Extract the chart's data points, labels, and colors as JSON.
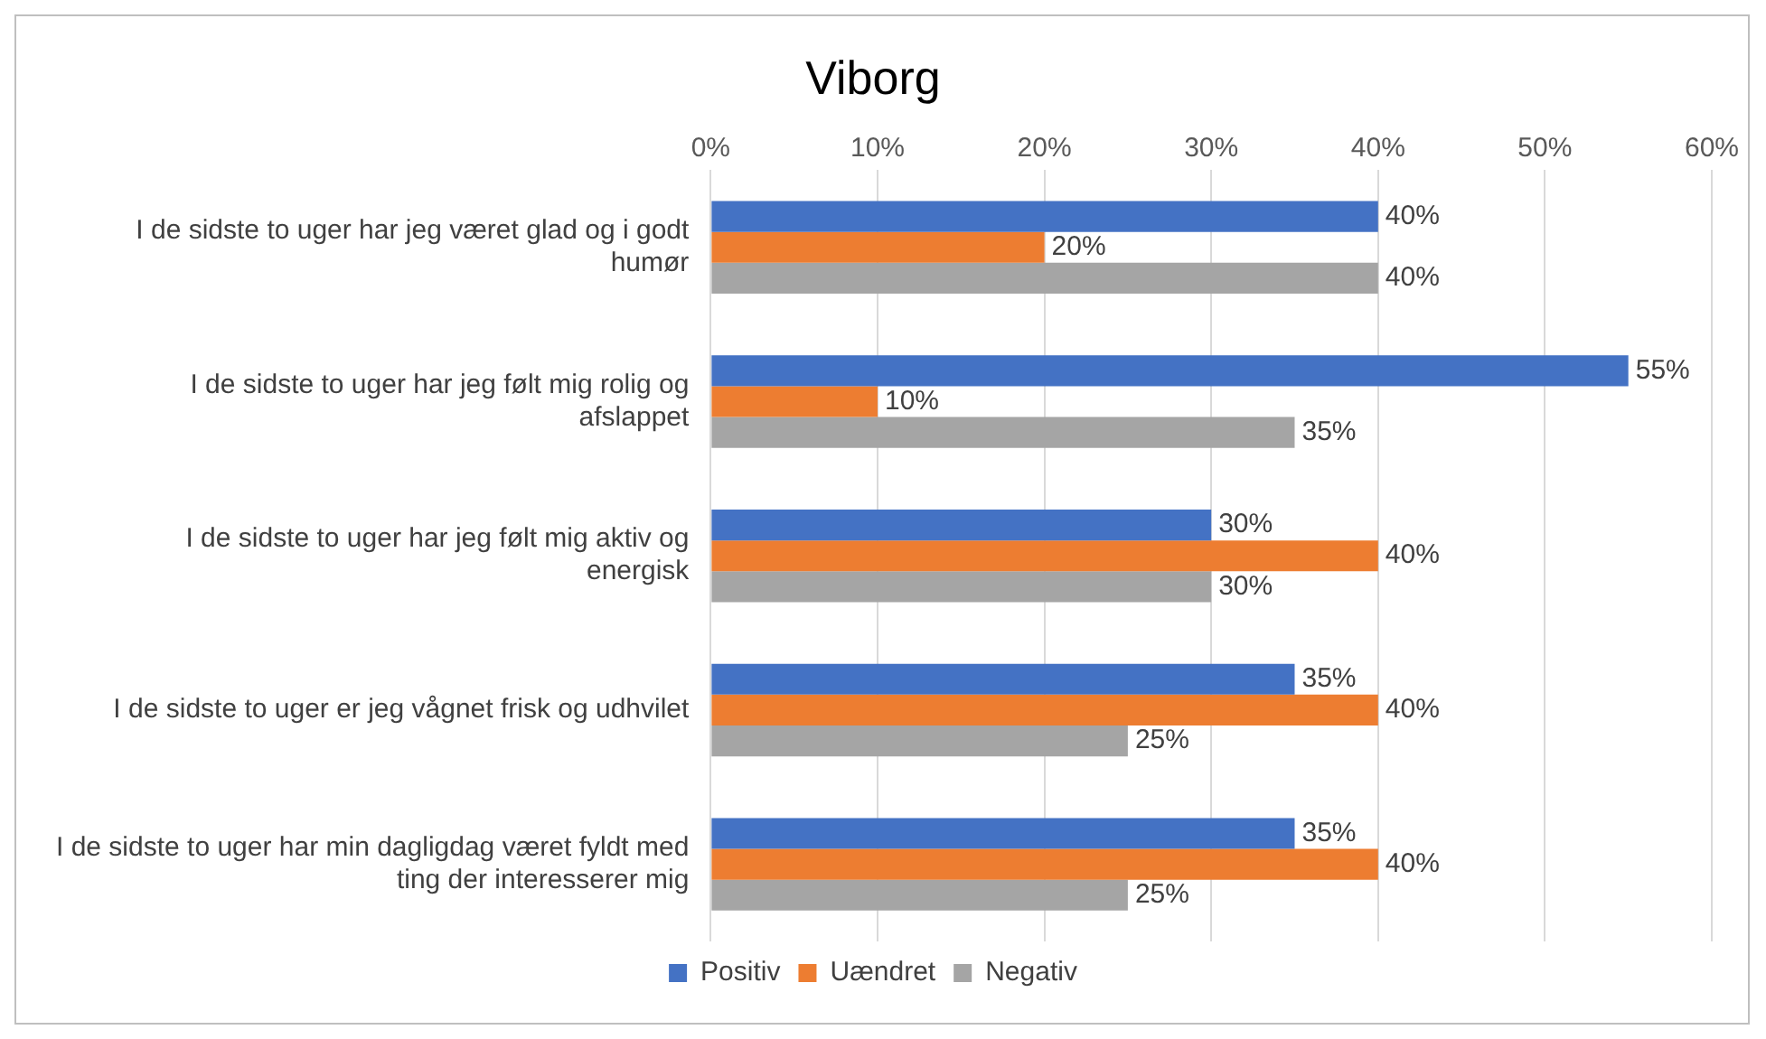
{
  "chart_data": {
    "type": "bar",
    "orientation": "horizontal",
    "title": "Viborg",
    "categories": [
      "I de sidste to uger har jeg været glad og i godt humør",
      "I de sidste to uger har jeg følt mig rolig og afslappet",
      "I de sidste to uger har jeg følt mig aktiv og energisk",
      "I de sidste to uger er jeg vågnet frisk og udhvilet",
      "I de sidste to uger har min dagligdag været fyldt med ting der interesserer mig"
    ],
    "series": [
      {
        "name": "Positiv",
        "color": "#4472c4",
        "values": [
          40,
          55,
          30,
          35,
          35
        ],
        "value_labels": [
          "40%",
          "55%",
          "30%",
          "35%",
          "35%"
        ]
      },
      {
        "name": "Uændret",
        "color": "#ed7d31",
        "values": [
          20,
          10,
          40,
          40,
          40
        ],
        "value_labels": [
          "20%",
          "10%",
          "40%",
          "40%",
          "40%"
        ]
      },
      {
        "name": "Negativ",
        "color": "#a5a5a5",
        "values": [
          40,
          35,
          30,
          25,
          25
        ],
        "value_labels": [
          "40%",
          "35%",
          "30%",
          "25%",
          "25%"
        ]
      }
    ],
    "xlim": [
      0,
      60
    ],
    "xticks": [
      {
        "value": 0,
        "label": "0%"
      },
      {
        "value": 10,
        "label": "10%"
      },
      {
        "value": 20,
        "label": "20%"
      },
      {
        "value": 30,
        "label": "30%"
      },
      {
        "value": 40,
        "label": "40%"
      },
      {
        "value": 50,
        "label": "50%"
      },
      {
        "value": 60,
        "label": "60%"
      }
    ],
    "grid": "x",
    "legend": "bottom"
  }
}
